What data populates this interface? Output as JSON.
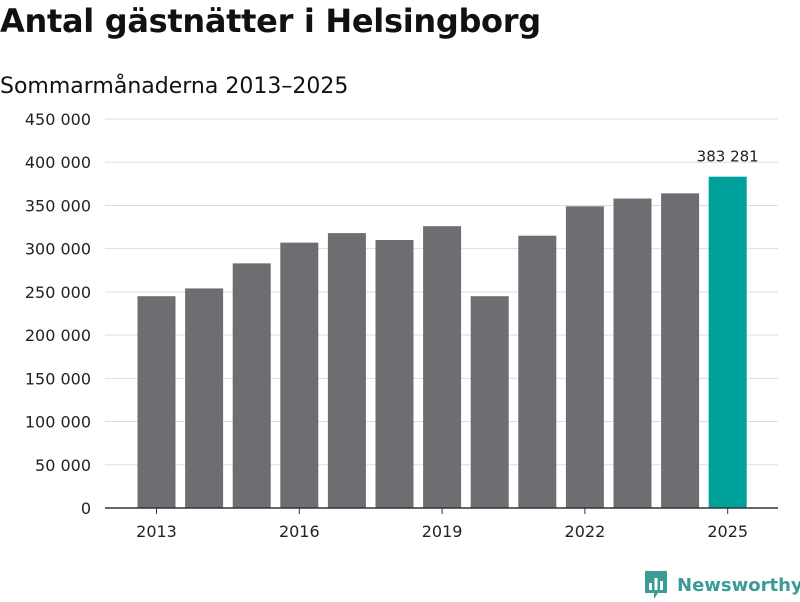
{
  "chart_data": {
    "type": "bar",
    "title": "Antal gästnätter i Helsingborg",
    "subtitle": "Sommarmånaderna 2013–2025",
    "categories": [
      "2013",
      "2014",
      "2015",
      "2016",
      "2017",
      "2018",
      "2019",
      "2020",
      "2021",
      "2022",
      "2023",
      "2024",
      "2025"
    ],
    "values": [
      245000,
      254000,
      283000,
      307000,
      318000,
      310000,
      326000,
      245000,
      315000,
      349000,
      358000,
      364000,
      383281
    ],
    "x_tick_labels": [
      "2013",
      "2016",
      "2019",
      "2022",
      "2025"
    ],
    "y_ticks": [
      0,
      50000,
      100000,
      150000,
      200000,
      250000,
      300000,
      350000,
      400000,
      450000
    ],
    "y_tick_labels": [
      "0",
      "50 000",
      "100 000",
      "150 000",
      "200 000",
      "250 000",
      "300 000",
      "350 000",
      "400 000",
      "450 000"
    ],
    "ylim": [
      0,
      450000
    ],
    "grid": true,
    "highlight": {
      "category": "2025",
      "label": "383 281"
    },
    "colors": {
      "bar": "#6e6d72",
      "highlight": "#00a19a",
      "grid": "#dddddd",
      "axis": "#333333"
    }
  },
  "branding": {
    "name": "Newsworthy",
    "color": "#3a9c96",
    "icon": "newsworthy-logo-icon"
  }
}
